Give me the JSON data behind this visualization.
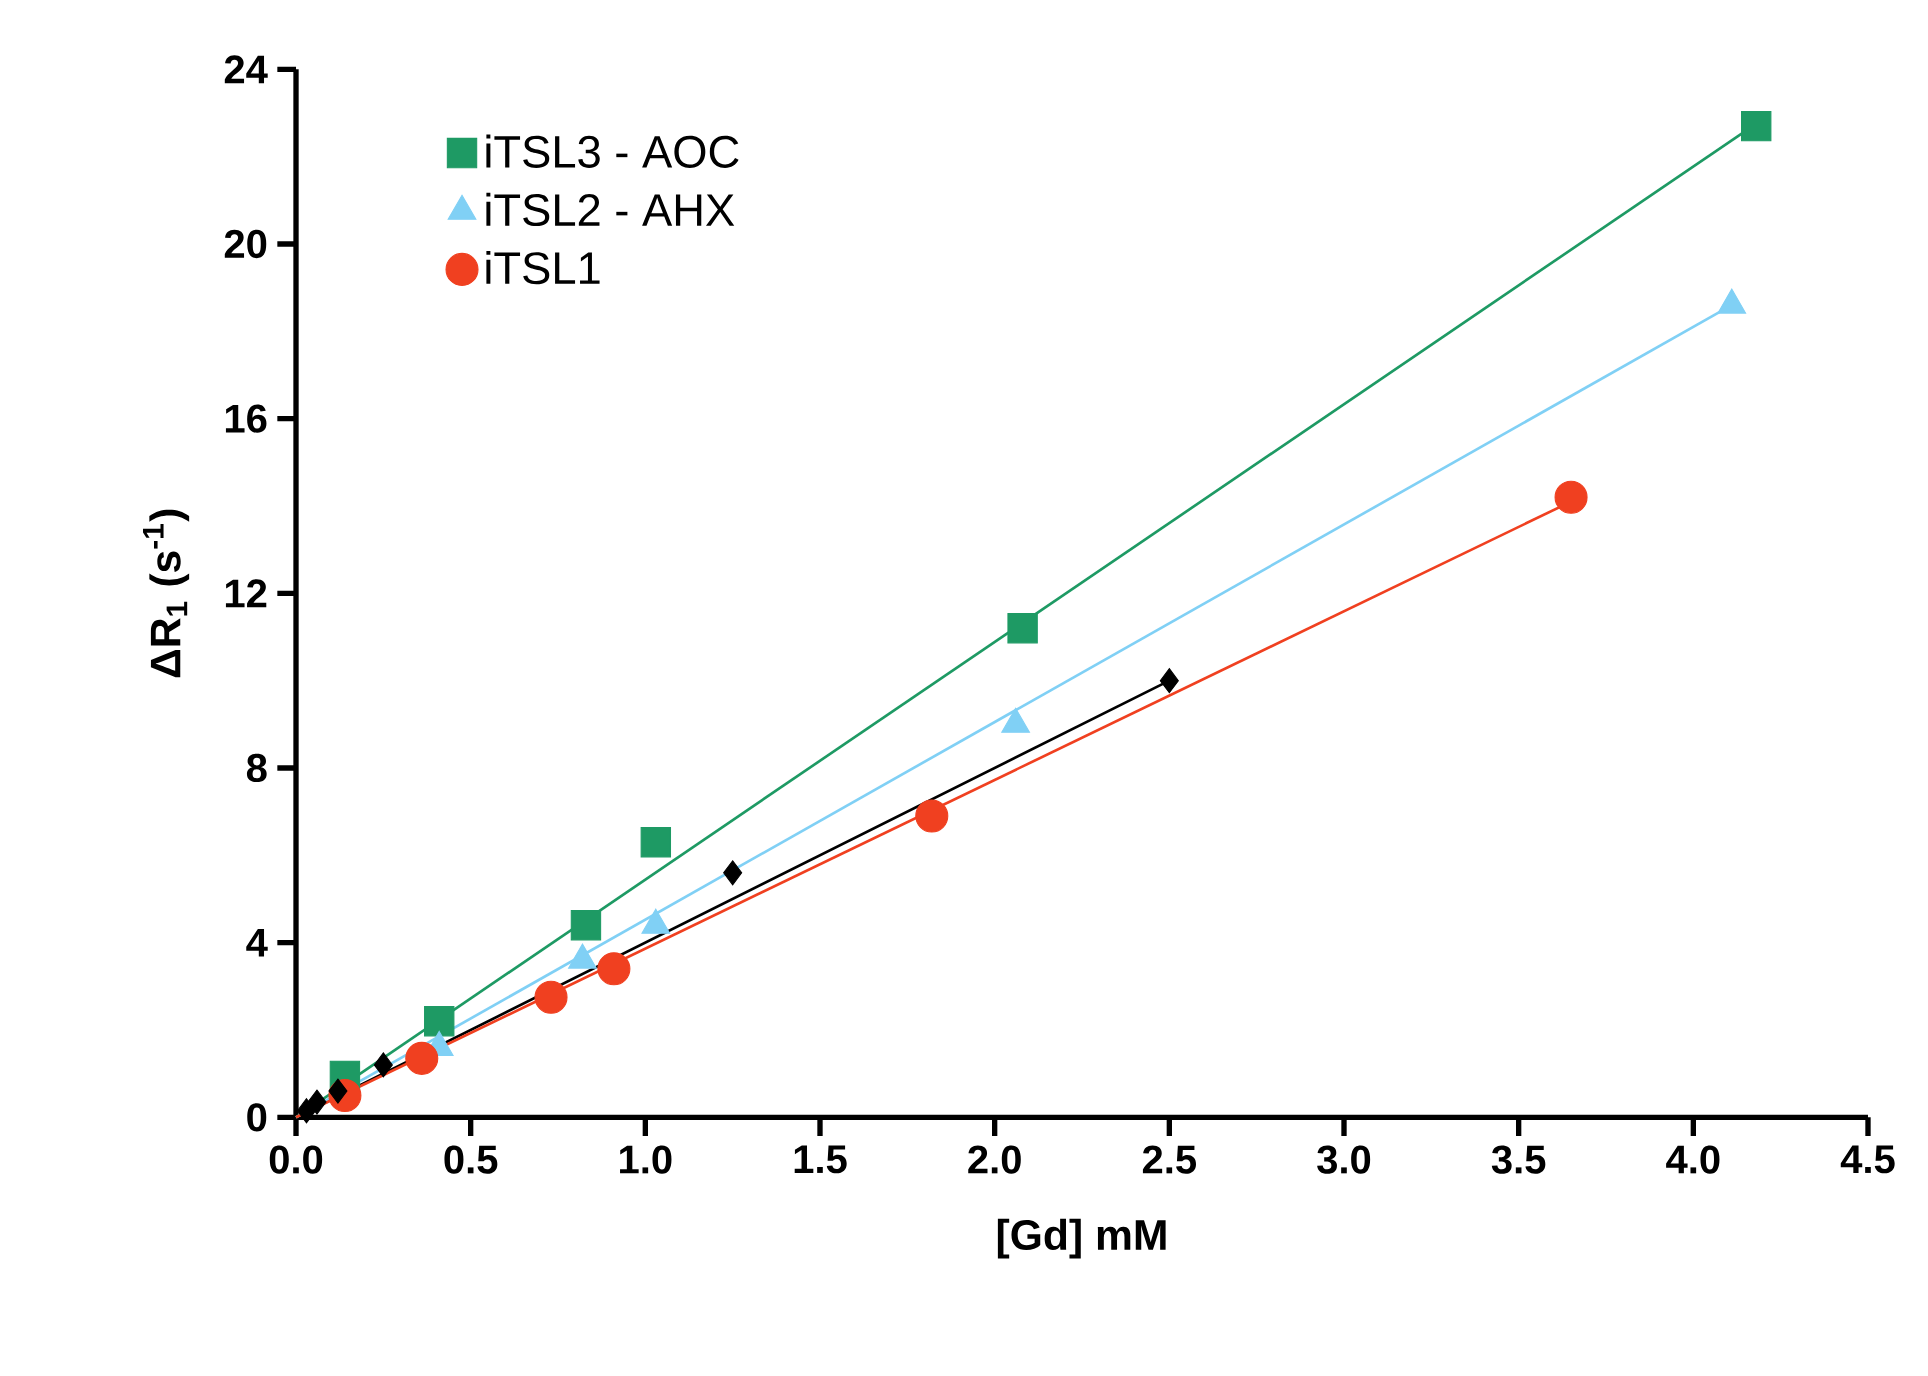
{
  "chart_data": {
    "type": "scatter",
    "xlabel": "[Gd] mM",
    "ylabel": "ΔR$_{1}$ (s$^{-1}$)",
    "xlim": [
      0,
      4.5
    ],
    "ylim": [
      0,
      24
    ],
    "xticks": [
      {
        "value": 0,
        "label": "0.0"
      },
      {
        "value": 0.5,
        "label": "0.5"
      },
      {
        "value": 1,
        "label": "1.0"
      },
      {
        "value": 1.5,
        "label": "1.5"
      },
      {
        "value": 2,
        "label": "2.0"
      },
      {
        "value": 2.5,
        "label": "2.5"
      },
      {
        "value": 3,
        "label": "3.0"
      },
      {
        "value": 3.5,
        "label": "3.5"
      },
      {
        "value": 4,
        "label": "4.0"
      },
      {
        "value": 4.5,
        "label": "4.5"
      }
    ],
    "yticks": [
      0,
      4,
      8,
      12,
      16,
      20,
      24
    ],
    "grid": false,
    "legend": "top left",
    "series": [
      {
        "type": "line",
        "marker": "none",
        "color": "#000000",
        "x": [
          0,
          2.5
        ],
        "values": [
          0,
          10.0
        ]
      },
      {
        "type": "line",
        "marker": "none",
        "color": "#1e9a64",
        "x": [
          0,
          4.17
        ],
        "values": [
          0,
          22.7
        ]
      },
      {
        "type": "line",
        "marker": "none",
        "color": "#80d0f5",
        "x": [
          0,
          4.11
        ],
        "values": [
          0,
          18.6
        ]
      },
      {
        "type": "line",
        "marker": "none",
        "color": "#f04020",
        "x": [
          0,
          3.65
        ],
        "values": [
          0,
          14.1
        ]
      },
      {
        "marker": "square",
        "name": "iTSL3 - AOC",
        "color": "#1e9a64",
        "x": [
          0.14,
          0.41,
          0.83,
          1.03,
          2.08,
          4.18
        ],
        "values": [
          0.95,
          2.2,
          4.4,
          6.3,
          11.2,
          22.7
        ]
      },
      {
        "marker": "triangle",
        "name": "iTSL2 - AHX",
        "color": "#80d0f5",
        "x": [
          0.41,
          0.82,
          1.03,
          2.06,
          4.11
        ],
        "values": [
          1.6,
          3.6,
          4.4,
          9.0,
          18.6
        ]
      },
      {
        "marker": "circle",
        "name": "iTSL1",
        "color": "#f04020",
        "x": [
          0.14,
          0.36,
          0.73,
          0.91,
          1.82,
          3.65
        ],
        "values": [
          0.5,
          1.35,
          2.75,
          3.4,
          6.9,
          14.2
        ]
      },
      {
        "marker": "diamond",
        "color": "#000000",
        "x": [
          0.03,
          0.06,
          0.12,
          0.25,
          1.25,
          2.5
        ],
        "values": [
          0.15,
          0.35,
          0.6,
          1.2,
          5.6,
          10.0
        ]
      }
    ]
  }
}
